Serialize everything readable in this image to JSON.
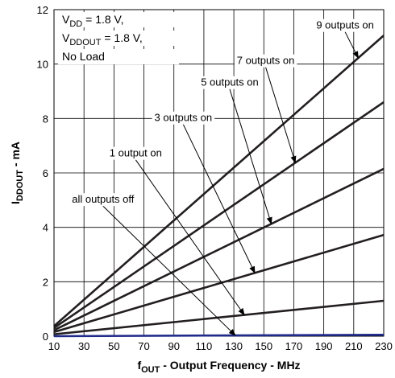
{
  "chart_data": {
    "type": "line",
    "x_axis": {
      "label_main": "f",
      "label_sub": "OUT",
      "label_rest": " - Output Frequency - MHz",
      "range": [
        10,
        230
      ],
      "ticks": [
        10,
        30,
        50,
        70,
        90,
        110,
        130,
        150,
        170,
        190,
        210,
        230
      ],
      "tick_labels": [
        "10",
        "30",
        "50",
        "70",
        "90",
        "110",
        "130",
        "150",
        "170",
        "190",
        "210",
        "230"
      ]
    },
    "y_axis": {
      "label_main": "I",
      "label_sub": "DDOUT",
      "label_rest": " - mA",
      "range": [
        0,
        12
      ],
      "ticks": [
        0,
        2,
        4,
        6,
        8,
        10,
        12
      ],
      "tick_labels": [
        "0",
        "2",
        "4",
        "6",
        "8",
        "10",
        "12"
      ]
    },
    "grid": true,
    "series": [
      {
        "name": "all outputs off",
        "color": "#1f2a8a",
        "x": [
          10,
          230
        ],
        "y": [
          0.0,
          0.05
        ]
      },
      {
        "name": "1 output on",
        "color": "#231f20",
        "x": [
          10,
          230
        ],
        "y": [
          0.07,
          1.3
        ]
      },
      {
        "name": "3 outputs on",
        "color": "#231f20",
        "x": [
          10,
          230
        ],
        "y": [
          0.15,
          3.72
        ]
      },
      {
        "name": "5 outputs on",
        "color": "#231f20",
        "x": [
          10,
          230
        ],
        "y": [
          0.22,
          6.15
        ]
      },
      {
        "name": "7 outputs on",
        "color": "#231f20",
        "x": [
          10,
          230
        ],
        "y": [
          0.3,
          8.6
        ]
      },
      {
        "name": "9 outputs on",
        "color": "#231f20",
        "x": [
          10,
          230
        ],
        "y": [
          0.37,
          11.05
        ]
      }
    ],
    "conditions": [
      {
        "main": "V",
        "sub": "DD",
        "rest": " = 1.8 V,"
      },
      {
        "main": "V",
        "sub": "DDOUT",
        "rest": " = 1.8 V,"
      },
      {
        "main": "No Load",
        "sub": "",
        "rest": ""
      }
    ],
    "annotations": [
      {
        "text": "9 outputs on",
        "tx": 185,
        "ty": 11.3,
        "anchor_series": 5,
        "ax": 213
      },
      {
        "text": "7 outputs on",
        "tx": 132,
        "ty": 10.0,
        "anchor_series": 4,
        "ax": 171
      },
      {
        "text": "5 outputs on",
        "tx": 108,
        "ty": 9.2,
        "anchor_series": 3,
        "ax": 155
      },
      {
        "text": "3 outputs on",
        "tx": 77,
        "ty": 7.9,
        "anchor_series": 2,
        "ax": 144
      },
      {
        "text": "1 output on",
        "tx": 47,
        "ty": 6.6,
        "anchor_series": 1,
        "ax": 137
      },
      {
        "text": "all outputs off",
        "tx": 22,
        "ty": 4.9,
        "anchor_series": 0,
        "ax": 131
      }
    ]
  }
}
